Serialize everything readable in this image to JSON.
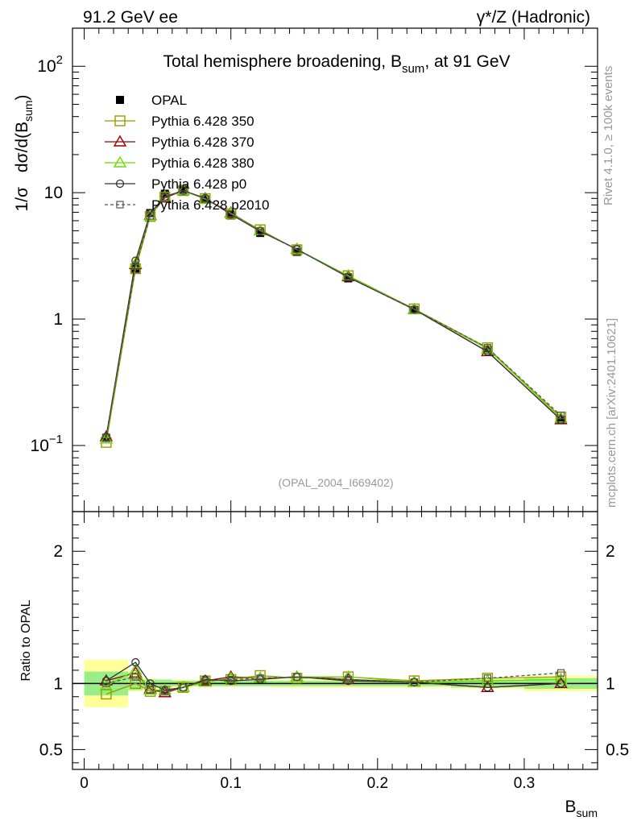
{
  "header": {
    "left": "91.2 GeV ee",
    "right": "γ*/Z (Hadronic)"
  },
  "side_labels": {
    "rivet": "Rivet 4.1.0, ≥ 100k events",
    "mcplots": "mcplots.cern.ch [arXiv:2401.10621]"
  },
  "chart_data": {
    "type": "line",
    "title": "Total hemisphere broadening, B_sum, at 91 GeV",
    "title_parts": {
      "main": "Total hemisphere broadening, B",
      "sub": "sum",
      "tail": ", at 91 GeV"
    },
    "watermark": "(OPAL_2004_I669402)",
    "xlabel": {
      "main": "B",
      "sub": "sum"
    },
    "ylabel": {
      "prefix": "1/σ",
      "main": "dσ/d(B",
      "sub": "sum",
      "tail": ")"
    },
    "ratio_ylabel": "Ratio to OPAL",
    "xlim": [
      -0.008,
      0.35
    ],
    "ylim_log": [
      0.03,
      200
    ],
    "ratio_ylim": [
      0.35,
      2.3
    ],
    "x_ticks": [
      {
        "v": 0,
        "label": "0"
      },
      {
        "v": 0.1,
        "label": "0.1"
      },
      {
        "v": 0.2,
        "label": "0.2"
      },
      {
        "v": 0.3,
        "label": "0.3"
      }
    ],
    "y_ticks": [
      {
        "v": 0.1,
        "base": "10",
        "exp": "−1"
      },
      {
        "v": 1,
        "base": "1",
        "exp": ""
      },
      {
        "v": 10,
        "base": "10",
        "exp": ""
      },
      {
        "v": 100,
        "base": "10",
        "exp": "2"
      }
    ],
    "ratio_ticks": [
      {
        "v": 0.5,
        "label": "0.5"
      },
      {
        "v": 1,
        "label": "1"
      },
      {
        "v": 2,
        "label": "2"
      }
    ],
    "x": [
      0.015,
      0.035,
      0.045,
      0.055,
      0.0675,
      0.0825,
      0.1,
      0.12,
      0.145,
      0.18,
      0.225,
      0.275,
      0.325
    ],
    "bin_edges": [
      0,
      0.03,
      0.04,
      0.05,
      0.06,
      0.075,
      0.09,
      0.11,
      0.13,
      0.16,
      0.2,
      0.25,
      0.3,
      0.35
    ],
    "data": {
      "name": "OPAL",
      "values": [
        0.115,
        2.5,
        6.9,
        9.8,
        10.7,
        8.8,
        6.6,
        4.8,
        3.4,
        2.1,
        1.18,
        0.57,
        0.16
      ],
      "band_inner": [
        0.09,
        0.05,
        0.03,
        0.03,
        0.02,
        0.02,
        0.02,
        0.02,
        0.02,
        0.02,
        0.02,
        0.03,
        0.04
      ],
      "band_outer": [
        0.18,
        0.06,
        0.04,
        0.03,
        0.03,
        0.025,
        0.025,
        0.025,
        0.03,
        0.03,
        0.03,
        0.04,
        0.06
      ]
    },
    "series": [
      {
        "name": "Pythia 6.428 350",
        "color": "#999900",
        "marker": "square-open",
        "dash": "",
        "ratio": [
          0.92,
          1.0,
          0.94,
          0.94,
          0.97,
          1.02,
          1.03,
          1.06,
          1.04,
          1.05,
          1.02,
          1.04,
          1.05
        ]
      },
      {
        "name": "Pythia 6.428 370",
        "color": "#990000",
        "marker": "triangle-open",
        "dash": "",
        "ratio": [
          1.02,
          1.08,
          0.96,
          0.93,
          0.97,
          1.02,
          1.05,
          1.04,
          1.05,
          1.03,
          1.01,
          0.97,
          1.0
        ]
      },
      {
        "name": "Pythia 6.428 380",
        "color": "#66dd00",
        "marker": "triangle-open",
        "dash": "",
        "ratio": [
          0.98,
          1.1,
          0.95,
          0.95,
          0.97,
          1.01,
          1.04,
          1.04,
          1.05,
          1.05,
          1.01,
          1.02,
          1.03
        ]
      },
      {
        "name": "Pythia 6.428 p0",
        "color": "#333333",
        "marker": "circle-open",
        "dash": "",
        "ratio": [
          1.02,
          1.16,
          1.0,
          0.95,
          0.97,
          1.03,
          1.02,
          1.03,
          1.05,
          1.02,
          1.01,
          0.97,
          1.0
        ]
      },
      {
        "name": "Pythia 6.428 p2010",
        "color": "#555555",
        "marker": "square-open-small",
        "dash": "4,3",
        "ratio": [
          1.0,
          1.05,
          0.95,
          0.94,
          0.97,
          1.02,
          1.03,
          1.04,
          1.05,
          1.03,
          1.01,
          1.04,
          1.08
        ]
      }
    ],
    "legend": {
      "placement": "top-left"
    }
  }
}
